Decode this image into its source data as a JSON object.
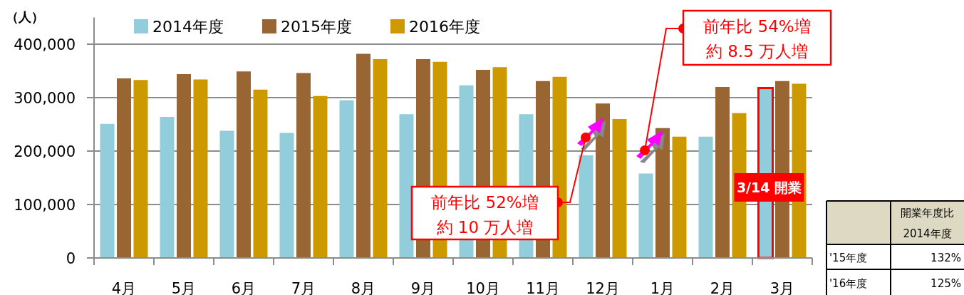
{
  "chart_data": {
    "type": "bar",
    "ylabel": "（人）",
    "categories": [
      "4月",
      "5月",
      "6月",
      "7月",
      "8月",
      "9月",
      "10月",
      "11月",
      "12月",
      "1月",
      "2月",
      "3月"
    ],
    "series": [
      {
        "name": "2014年度",
        "color": "#92cddc",
        "values": [
          251000,
          264000,
          238000,
          234000,
          295000,
          269000,
          323000,
          269000,
          192000,
          158000,
          227000,
          318000
        ]
      },
      {
        "name": "2015年度",
        "color": "#996633",
        "values": [
          336000,
          344000,
          349000,
          346000,
          382000,
          372000,
          352000,
          331000,
          289000,
          243000,
          320000,
          331000
        ]
      },
      {
        "name": "2016年度",
        "color": "#cc9900",
        "values": [
          333000,
          334000,
          315000,
          303000,
          372000,
          367000,
          357000,
          339000,
          260000,
          227000,
          271000,
          326000
        ]
      }
    ],
    "ylim": [
      0,
      450000
    ],
    "yticks": [
      {
        "value": 0,
        "label": "0"
      },
      {
        "value": 100000,
        "label": "100,000"
      },
      {
        "value": 200000,
        "label": "200,000"
      },
      {
        "value": 300000,
        "label": "300,000"
      },
      {
        "value": 400000,
        "label": "400,000"
      }
    ],
    "grid": "y",
    "legend": "top",
    "annotations": [
      "前年比 52%増",
      "約 10 万人増",
      "前年比 54%増",
      "約 8.5 万人増",
      "3/14 開業",
      "開業年度比",
      "2014年度",
      "'15年度",
      "132%",
      "'16年度",
      "125%"
    ]
  }
}
